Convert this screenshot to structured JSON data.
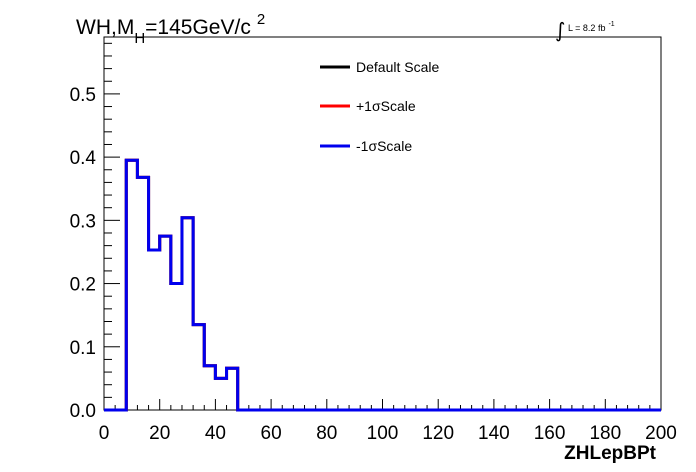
{
  "chart_data": {
    "type": "line",
    "title": {
      "main": "WH,M",
      "sub": "H",
      "rest": "=145GeV/c",
      "sup": "2"
    },
    "lumi": {
      "integral": "∫",
      "text": "L = 8.2 fb",
      "sup": "-1"
    },
    "xlabel": "ZHLepBPt",
    "ylabel": "",
    "xlim": [
      0,
      200
    ],
    "ylim": [
      0,
      0.59
    ],
    "xticks": [
      0,
      20,
      40,
      60,
      80,
      100,
      120,
      140,
      160,
      180,
      200
    ],
    "xtick_labels": [
      "0",
      "20",
      "40",
      "60",
      "80",
      "100",
      "120",
      "140",
      "160",
      "180",
      "200"
    ],
    "yticks": [
      0.0,
      0.1,
      0.2,
      0.3,
      0.4,
      0.5
    ],
    "ytick_labels": [
      "0.0",
      "0.1",
      "0.2",
      "0.3",
      "0.4",
      "0.5"
    ],
    "bin_width": 4,
    "bin_edges_start": 0,
    "series": [
      {
        "name": "Default Scale",
        "color": "#000000",
        "values": [
          0,
          0,
          0.395,
          0.368,
          0.253,
          0.275,
          0.2,
          0.304,
          0.135,
          0.07,
          0.05,
          0.066,
          0,
          0,
          0,
          0,
          0,
          0,
          0,
          0,
          0,
          0,
          0,
          0,
          0,
          0,
          0,
          0,
          0,
          0,
          0,
          0,
          0,
          0,
          0,
          0,
          0,
          0,
          0,
          0,
          0,
          0,
          0,
          0,
          0,
          0,
          0,
          0,
          0,
          0
        ]
      },
      {
        "name": "+1σScale",
        "color": "#ff0000",
        "values": [
          0,
          0,
          0.395,
          0.368,
          0.253,
          0.275,
          0.2,
          0.304,
          0.135,
          0.07,
          0.05,
          0.066,
          0,
          0,
          0,
          0,
          0,
          0,
          0,
          0,
          0,
          0,
          0,
          0,
          0,
          0,
          0,
          0,
          0,
          0,
          0,
          0,
          0,
          0,
          0,
          0,
          0,
          0,
          0,
          0,
          0,
          0,
          0,
          0,
          0,
          0,
          0,
          0,
          0,
          0
        ]
      },
      {
        "name": "-1σScale",
        "color": "#0000ee",
        "values": [
          0,
          0,
          0.395,
          0.368,
          0.253,
          0.275,
          0.2,
          0.304,
          0.135,
          0.07,
          0.05,
          0.066,
          0,
          0,
          0,
          0,
          0,
          0,
          0,
          0,
          0,
          0,
          0,
          0,
          0,
          0,
          0,
          0,
          0,
          0,
          0,
          0,
          0,
          0,
          0,
          0,
          0,
          0,
          0,
          0,
          0,
          0,
          0,
          0,
          0,
          0,
          0,
          0,
          0,
          0
        ]
      }
    ],
    "legend_position": "top-center",
    "grid": false
  }
}
